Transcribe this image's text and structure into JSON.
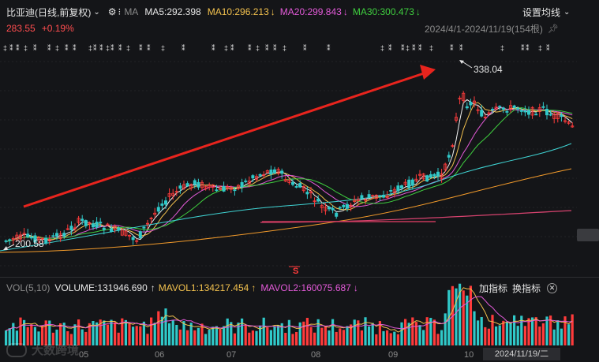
{
  "header": {
    "stock_name": "比亚迪(日线,前复权)",
    "settings_icon": "gear-icon",
    "indicator_name": "MA",
    "ma5": "MA5:292.398",
    "ma10": "MA10:296.213",
    "ma20": "MA20:299.843",
    "ma30": "MA30:300.473",
    "down_arrow": "↓",
    "settings_button": "设置均线",
    "settings_chevron": "chevron-down-icon"
  },
  "price_row": {
    "price": "283.55",
    "change": "+0.19%",
    "range": "2024/4/1-2024/11/19(154根)",
    "pin_icon": "pin-icon"
  },
  "annotations": {
    "high_label": "338.04",
    "low_label": "200.58",
    "marker_s": "S"
  },
  "volume_header": {
    "name": "VOL(5,10)",
    "volume": "VOLUME:131946.690",
    "up_arrow": "↑",
    "mavol1": "MAVOL1:134217.454",
    "mavol2": "MAVOL2:160075.687",
    "down_arrow": "↓",
    "add_indicator": "加指标",
    "switch_indicator": "换指标",
    "close_icon": "close-icon"
  },
  "x_axis": {
    "labels": [
      "05",
      "06",
      "07",
      "08",
      "09",
      "10"
    ],
    "date_tip": "2024/11/19/二"
  },
  "watermark": "大数跨境",
  "colors": {
    "up": "#ff3b3b",
    "down": "#30c9c9",
    "ma5": "#f0f0f0",
    "ma10": "#f2c14e",
    "ma20": "#e35ad8",
    "ma30": "#3fcf3f",
    "ma60": "#3fd3d3",
    "ma120": "#f39b2b",
    "ma250": "#d8436f"
  }
}
